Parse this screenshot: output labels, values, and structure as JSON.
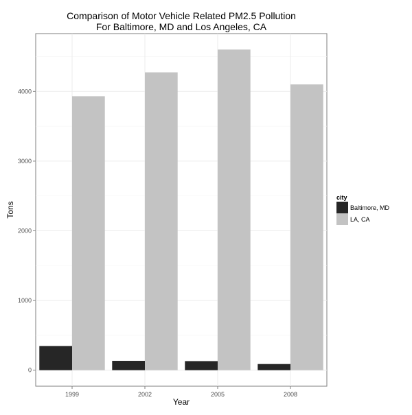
{
  "chart_data": {
    "type": "bar",
    "title_line1": "Comparison of Motor Vehicle Related PM2.5 Pollution",
    "title_line2": "For Baltimore, MD and Los Angeles, CA",
    "xlabel": "Year",
    "ylabel": "Tons",
    "categories": [
      "1999",
      "2002",
      "2005",
      "2008"
    ],
    "series": [
      {
        "name": "Baltimore, MD",
        "color": "#262626",
        "values": [
          347,
          134,
          130,
          88
        ]
      },
      {
        "name": "LA, CA",
        "color": "#c3c3c3",
        "values": [
          3931,
          4274,
          4601,
          4101
        ]
      }
    ],
    "ylim": [
      -230,
      4830
    ],
    "yticks": [
      "0",
      "1000",
      "2000",
      "3000",
      "4000"
    ],
    "legend": {
      "title": "city",
      "position": "right"
    },
    "grid": true
  }
}
